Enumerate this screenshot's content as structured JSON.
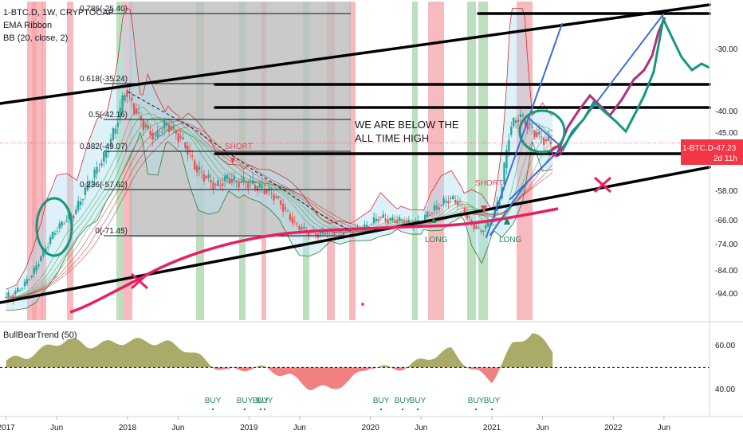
{
  "header": {
    "symbol": "1-BTC.D, 1W, CRYPTOCAP",
    "indicator1": "EMA Ribbon",
    "indicator2": "BB (20, close, 2)",
    "lower_indicator": "BullBearTrend (50)"
  },
  "price_tag": {
    "symbol": "1-BTC.D",
    "value": "-47.23",
    "countdown": "2d 11h"
  },
  "annotation": {
    "line1": "WE ARE BELOW THE",
    "line2": "ALL TIME HIGH"
  },
  "signals": {
    "short1": "SHORT",
    "short2": "SHORT",
    "long1": "LONG",
    "long2": "LONG",
    "buy": "BUY"
  },
  "chart_data": [
    {
      "type": "line",
      "panel": "main",
      "title": "1-BTC.D, 1W, CRYPTOCAP",
      "xlabel": "",
      "ylabel": "",
      "x_ticks": [
        "2017",
        "Jun",
        "2018",
        "Jun",
        "2019",
        "Jun",
        "2020",
        "Jun",
        "2021",
        "Jun",
        "2022",
        "Jun"
      ],
      "y_ticks": [
        -30.0,
        -40.0,
        -45.0,
        -58.0,
        -66.0,
        -74.0,
        -84.0,
        -94.0
      ],
      "ylim": [
        -100,
        -22
      ],
      "series": [
        {
          "name": "1-BTC.D",
          "x": [
            "2017-01",
            "2017-02",
            "2017-03",
            "2017-04",
            "2017-05",
            "2017-06",
            "2017-07",
            "2017-08",
            "2017-09",
            "2017-10",
            "2017-11",
            "2017-12",
            "2018-01",
            "2018-02",
            "2018-03",
            "2018-04",
            "2018-05",
            "2018-06",
            "2018-07",
            "2018-08",
            "2018-09",
            "2018-10",
            "2018-11",
            "2018-12",
            "2019-01",
            "2019-02",
            "2019-03",
            "2019-04",
            "2019-05",
            "2019-06",
            "2019-07",
            "2019-08",
            "2019-09",
            "2019-10",
            "2019-11",
            "2019-12",
            "2020-01",
            "2020-02",
            "2020-03",
            "2020-04",
            "2020-05",
            "2020-06",
            "2020-07",
            "2020-08",
            "2020-09",
            "2020-10",
            "2020-11",
            "2020-12",
            "2021-01",
            "2021-02",
            "2021-03",
            "2021-04",
            "2021-05",
            "2021-06",
            "2021-07"
          ],
          "values": [
            -95,
            -94,
            -90,
            -84,
            -76,
            -70,
            -66,
            -64,
            -58,
            -54,
            -50,
            -44,
            -36,
            -40,
            -44,
            -46,
            -43,
            -45,
            -48,
            -53,
            -55,
            -57,
            -55,
            -56,
            -56,
            -57,
            -58,
            -60,
            -64,
            -68,
            -70,
            -71,
            -70,
            -70,
            -70,
            -69,
            -68,
            -65,
            -66,
            -66,
            -67,
            -67,
            -64,
            -62,
            -60,
            -61,
            -66,
            -70,
            -67,
            -60,
            -44,
            -41,
            -44,
            -46,
            -47.23
          ]
        }
      ],
      "fibonacci": [
        {
          "label": "0.786(-25.40)",
          "value": -25.4
        },
        {
          "label": "0.618(-35.24)",
          "value": -35.24
        },
        {
          "label": "0.5(-42.16)",
          "value": -42.16
        },
        {
          "label": "0.382(-49.07)",
          "value": -49.07
        },
        {
          "label": "0.236(-57.62)",
          "value": -57.62
        },
        {
          "label": "0(-71.45)",
          "value": -71.45
        }
      ],
      "last_value": -47.23
    },
    {
      "type": "area",
      "panel": "lower",
      "title": "BullBearTrend (50)",
      "y_ticks": [
        60.0,
        40.0
      ],
      "ylim": [
        33,
        68
      ],
      "baseline": 50,
      "x": [
        "2017-01",
        "2017-03",
        "2017-05",
        "2017-07",
        "2017-09",
        "2017-11",
        "2018-01",
        "2018-03",
        "2018-05",
        "2018-07",
        "2018-09",
        "2018-11",
        "2019-01",
        "2019-03",
        "2019-05",
        "2019-07",
        "2019-09",
        "2019-11",
        "2020-01",
        "2020-03",
        "2020-05",
        "2020-07",
        "2020-09",
        "2020-11",
        "2021-01",
        "2021-03",
        "2021-05",
        "2021-07"
      ],
      "values": [
        53,
        55,
        59,
        63,
        60,
        61,
        62,
        62,
        61,
        58,
        52,
        48,
        50,
        49,
        46,
        41,
        40,
        44,
        51,
        49,
        51,
        55,
        58,
        49,
        44,
        60,
        66,
        58
      ],
      "colors": {
        "bull": "#9b9b4f",
        "bear": "#f07272"
      }
    }
  ],
  "colors": {
    "red_zone": "#f4a3a8",
    "green_zone": "#a5d6a7",
    "gray_zone": "#bdbdbd",
    "candle_up": "#26a69a",
    "candle_down": "#ef5350",
    "accent_pink": "#e91e63",
    "trend_blue": "#3d6fd8",
    "forecast_teal": "#15977f",
    "forecast_purple": "#b0307f",
    "bull_area": "#9b9b4f",
    "bear_area": "#f07272"
  }
}
